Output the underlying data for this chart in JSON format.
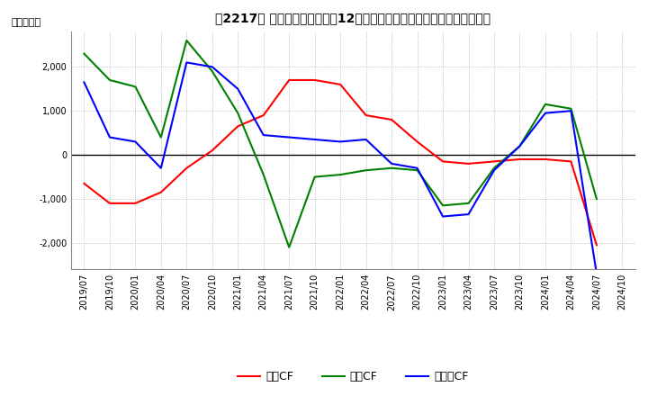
{
  "title": "［2217］ キャッシュフローの12か月移動合計の対前年同期増減額の推移",
  "ylabel": "（百万円）",
  "ylim": [
    -2600,
    2800
  ],
  "yticks": [
    -2000,
    -1000,
    0,
    1000,
    2000
  ],
  "dates": [
    "2019/07",
    "2019/10",
    "2020/01",
    "2020/04",
    "2020/07",
    "2020/10",
    "2021/01",
    "2021/04",
    "2021/07",
    "2021/10",
    "2022/01",
    "2022/04",
    "2022/07",
    "2022/10",
    "2023/01",
    "2023/04",
    "2023/07",
    "2023/10",
    "2024/01",
    "2024/04",
    "2024/07",
    "2024/10"
  ],
  "operating_cf": [
    -650,
    -1100,
    -1100,
    -850,
    -300,
    100,
    650,
    900,
    1700,
    1700,
    1600,
    900,
    800,
    300,
    -150,
    -200,
    -150,
    -100,
    -100,
    -150,
    -2050,
    null
  ],
  "investing_cf": [
    2300,
    1700,
    1550,
    400,
    2600,
    1900,
    950,
    -450,
    -2100,
    -500,
    -450,
    -350,
    -300,
    -350,
    -1150,
    -1100,
    -300,
    200,
    1150,
    1050,
    -1000,
    null
  ],
  "free_cf": [
    1650,
    400,
    300,
    -300,
    2100,
    2000,
    1500,
    450,
    400,
    350,
    300,
    350,
    -200,
    -300,
    -1400,
    -1350,
    -350,
    200,
    950,
    1000,
    -2700,
    null
  ],
  "color_operating": "#ff0000",
  "color_investing": "#008000",
  "color_free": "#0000ff",
  "background_color": "#ffffff",
  "grid_color": "#aaaaaa"
}
